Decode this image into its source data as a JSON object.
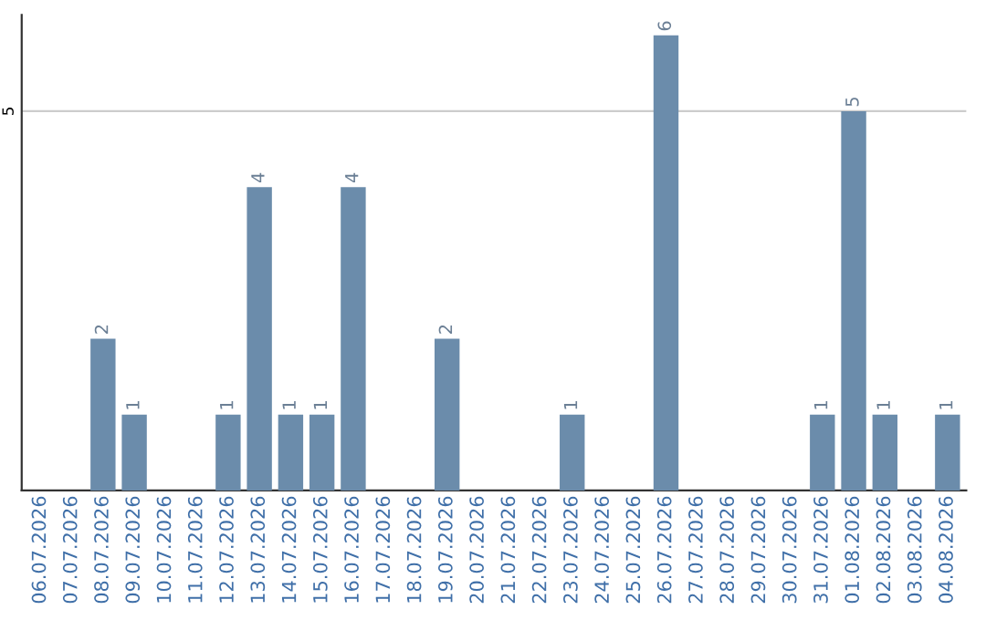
{
  "chart_data": {
    "type": "bar",
    "categories": [
      "06.07.2026",
      "07.07.2026",
      "08.07.2026",
      "09.07.2026",
      "10.07.2026",
      "11.07.2026",
      "12.07.2026",
      "13.07.2026",
      "14.07.2026",
      "15.07.2026",
      "16.07.2026",
      "17.07.2026",
      "18.07.2026",
      "19.07.2026",
      "20.07.2026",
      "21.07.2026",
      "22.07.2026",
      "23.07.2026",
      "24.07.2026",
      "25.07.2026",
      "26.07.2026",
      "27.07.2026",
      "28.07.2026",
      "29.07.2026",
      "30.07.2026",
      "31.07.2026",
      "01.08.2026",
      "02.08.2026",
      "03.08.2026",
      "04.08.2026"
    ],
    "values": [
      0,
      0,
      2,
      1,
      0,
      0,
      1,
      4,
      1,
      1,
      4,
      0,
      0,
      2,
      0,
      0,
      0,
      1,
      0,
      0,
      6,
      0,
      0,
      0,
      0,
      1,
      5,
      1,
      0,
      1
    ],
    "value_labels": [
      null,
      null,
      "2",
      "1",
      null,
      null,
      "1",
      "4",
      "1",
      "1",
      "4",
      null,
      null,
      "2",
      null,
      null,
      null,
      "1",
      null,
      null,
      "6",
      null,
      null,
      null,
      null,
      "1",
      "5",
      "1",
      null,
      "1"
    ],
    "color": "#6b8cab",
    "ylim": [
      0,
      6.27
    ],
    "yticks": [
      5
    ],
    "grid": "y"
  }
}
